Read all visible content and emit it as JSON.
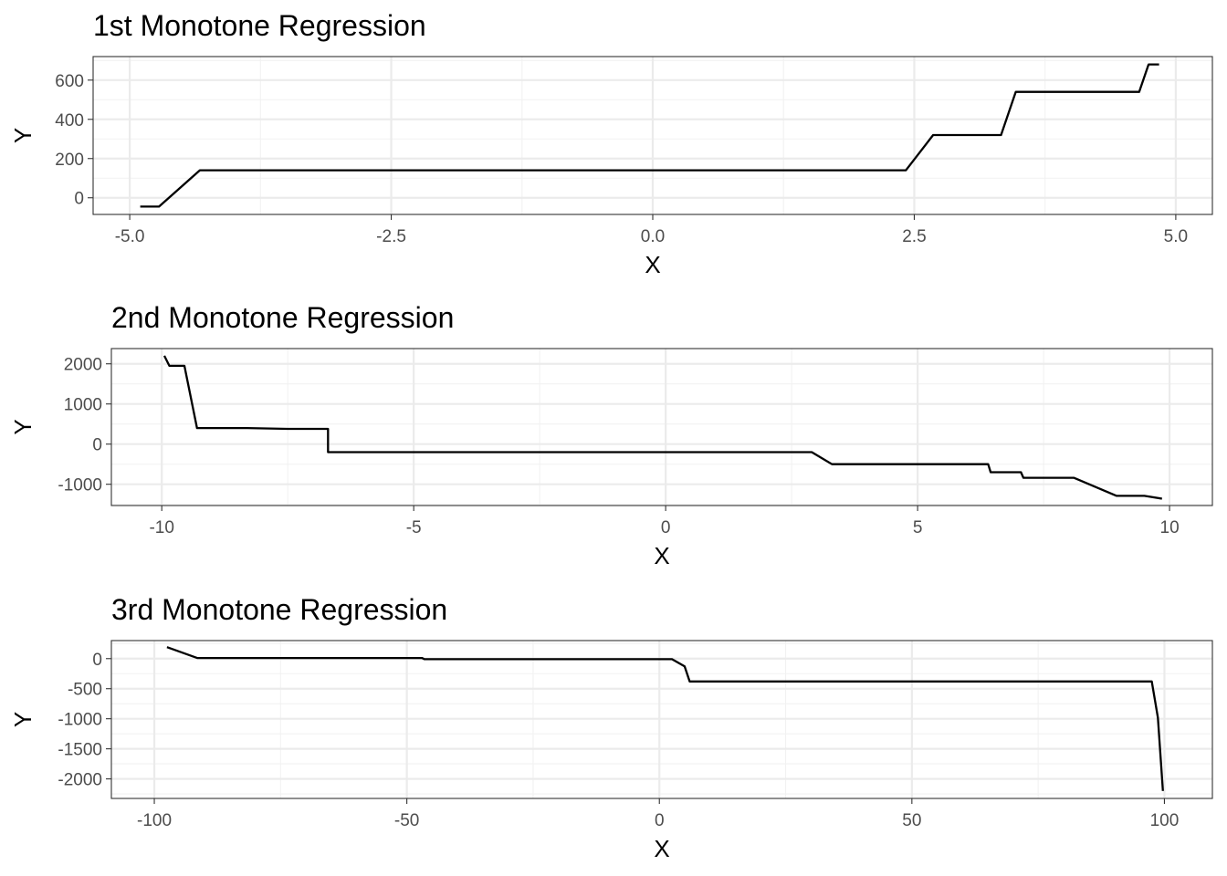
{
  "chart_data": [
    {
      "type": "line",
      "title": "1st  Monotone Regression",
      "xlabel": "X",
      "ylabel": "Y",
      "xlim": [
        -5.35,
        5.35
      ],
      "ylim": [
        -85,
        720
      ],
      "xticks": [
        -5,
        -2.5,
        0,
        2.5,
        5
      ],
      "xtick_labels": [
        "-5.0",
        "-2.5",
        "0.0",
        "2.5",
        "5.0"
      ],
      "yticks": [
        0,
        200,
        400,
        600
      ],
      "ytick_labels": [
        "0",
        "200",
        "400",
        "600"
      ],
      "grid": true,
      "series": [
        {
          "color": "#000000",
          "x": [
            -4.9,
            -4.72,
            -4.33,
            2.42,
            2.68,
            3.33,
            3.47,
            4.65,
            4.74,
            4.84
          ],
          "y": [
            -45,
            -45,
            140,
            140,
            320,
            320,
            540,
            540,
            680,
            680
          ]
        }
      ]
    },
    {
      "type": "line",
      "title": "2nd  Monotone Regression",
      "xlabel": "X",
      "ylabel": "Y",
      "xlim": [
        -11,
        10.85
      ],
      "ylim": [
        -1530,
        2380
      ],
      "xticks": [
        -10,
        -5,
        0,
        5,
        10
      ],
      "xtick_labels": [
        "-10",
        "-5",
        "0",
        "5",
        "10"
      ],
      "yticks": [
        -1000,
        0,
        1000,
        2000
      ],
      "ytick_labels": [
        "-1000",
        "0",
        "1000",
        "2000"
      ],
      "grid": true,
      "series": [
        {
          "color": "#000000",
          "x": [
            -9.95,
            -9.85,
            -9.55,
            -9.3,
            -8.3,
            -7.5,
            -6.7,
            -6.7,
            2.9,
            3.3,
            6.4,
            6.45,
            7.05,
            7.1,
            8.1,
            8.95,
            9.5,
            9.85
          ],
          "y": [
            2200,
            1950,
            1950,
            400,
            400,
            380,
            380,
            -200,
            -200,
            -500,
            -500,
            -700,
            -700,
            -840,
            -840,
            -1290,
            -1290,
            -1360
          ]
        }
      ]
    },
    {
      "type": "line",
      "title": "3rd  Monotone Regression",
      "xlabel": "X",
      "ylabel": "Y",
      "xlim": [
        -108.5,
        109.5
      ],
      "ylim": [
        -2325,
        300
      ],
      "xticks": [
        -100,
        -50,
        0,
        50,
        100
      ],
      "xtick_labels": [
        "-100",
        "-50",
        "0",
        "50",
        "100"
      ],
      "yticks": [
        -2000,
        -1500,
        -1000,
        -500,
        0
      ],
      "ytick_labels": [
        "-2000",
        "-1500",
        "-1000",
        "-500",
        "0"
      ],
      "grid": true,
      "series": [
        {
          "color": "#000000",
          "x": [
            -97.5,
            -91.5,
            -47,
            -46.5,
            2.5,
            5,
            6,
            97.5,
            98.7,
            99.7
          ],
          "y": [
            190,
            10,
            10,
            -10,
            -10,
            -130,
            -380,
            -380,
            -980,
            -2200
          ]
        }
      ]
    }
  ]
}
